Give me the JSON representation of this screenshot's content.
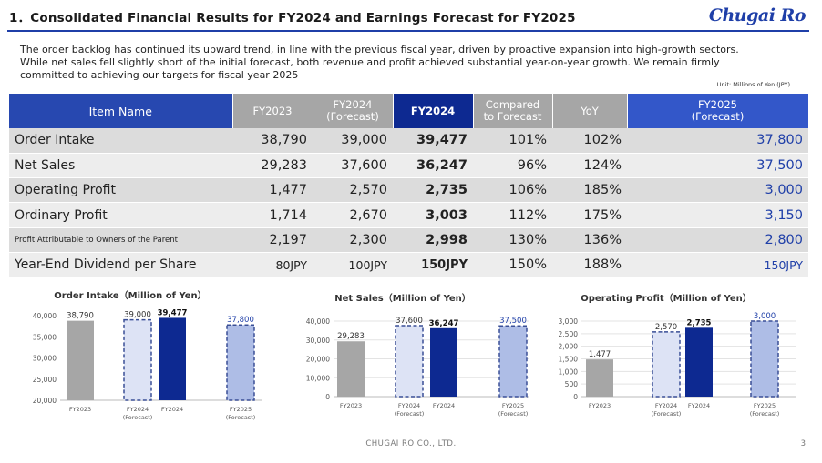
{
  "header": {
    "title": "1．Consolidated Financial Results for FY2024 and Earnings Forecast for FY2025",
    "logo": "Chugai Ro"
  },
  "intro": "The order backlog has continued its upward trend, in line with the previous fiscal year, driven by proactive expansion into high-growth sectors. While net sales fell slightly short of the initial forecast, both revenue and profit achieved substantial year-on-year growth. We remain firmly committed to achieving our targets for fiscal year 2025",
  "unit": "Unit: Millions of Yen (JPY)",
  "table": {
    "headers": {
      "item": "Item Name",
      "fy2023": "FY2023",
      "fy2024f_1": "FY2024",
      "fy2024f_2": "(Forecast)",
      "fy2024": "FY2024",
      "cmp_1": "Compared",
      "cmp_2": "to Forecast",
      "yoy": "YoY",
      "fy2025_1": "FY2025",
      "fy2025_2": "(Forecast)"
    },
    "rows": [
      {
        "name": "Order Intake",
        "fy2023": "38,790",
        "fy2024f": "39,000",
        "fy2024": "39,477",
        "cmp": "101%",
        "yoy": "102%",
        "fy2025": "37,800"
      },
      {
        "name": "Net Sales",
        "fy2023": "29,283",
        "fy2024f": "37,600",
        "fy2024": "36,247",
        "cmp": "96%",
        "yoy": "124%",
        "fy2025": "37,500"
      },
      {
        "name": "Operating Profit",
        "fy2023": "1,477",
        "fy2024f": "2,570",
        "fy2024": "2,735",
        "cmp": "106%",
        "yoy": "185%",
        "fy2025": "3,000"
      },
      {
        "name": "Ordinary Profit",
        "fy2023": "1,714",
        "fy2024f": "2,670",
        "fy2024": "3,003",
        "cmp": "112%",
        "yoy": "175%",
        "fy2025": "3,150"
      },
      {
        "name": "Profit Attributable to Owners of the Parent",
        "fy2023": "2,197",
        "fy2024f": "2,300",
        "fy2024": "2,998",
        "cmp": "130%",
        "yoy": "136%",
        "fy2025": "2,800"
      },
      {
        "name": "Year-End Dividend per Share",
        "fy2023": "80JPY",
        "fy2024f": "100JPY",
        "fy2024": "150JPY",
        "cmp": "150%",
        "yoy": "188%",
        "fy2025": "150JPY"
      }
    ]
  },
  "colors": {
    "fy2023": "#a6a6a6",
    "fy2024_forecast": "#dde3f5",
    "fy2024": "#0d2991",
    "fy2025_forecast": "#aebde6",
    "dash": "#3a4f96",
    "accent": "#1f3fa8"
  },
  "chart_data": [
    {
      "type": "bar",
      "title": "Order Intake（Million of Yen）",
      "categories": [
        "FY2023",
        "FY2024 (Forecast)",
        "FY2024",
        "FY2025 (Forecast)"
      ],
      "values": [
        38790,
        39000,
        39477,
        37800
      ],
      "value_labels": [
        "38,790",
        "39,000",
        "39,477",
        "37,800"
      ],
      "ylim": [
        20000,
        40000
      ],
      "yticks": [
        "20,000",
        "25,000",
        "30,000",
        "35,000",
        "40,000"
      ],
      "ytick_values": [
        20000,
        25000,
        30000,
        35000,
        40000
      ],
      "grid": false
    },
    {
      "type": "bar",
      "title": "Net Sales（Million of Yen）",
      "categories": [
        "FY2023",
        "FY2024 (Forecast)",
        "FY2024",
        "FY2025 (Forecast)"
      ],
      "values": [
        29283,
        37600,
        36247,
        37500
      ],
      "value_labels": [
        "29,283",
        "37,600",
        "36,247",
        "37,500"
      ],
      "ylim": [
        0,
        40000
      ],
      "yticks": [
        "0",
        "10,000",
        "20,000",
        "30,000",
        "40,000"
      ],
      "ytick_values": [
        0,
        10000,
        20000,
        30000,
        40000
      ],
      "grid": true
    },
    {
      "type": "bar",
      "title": "Operating Profit（Million of Yen）",
      "categories": [
        "FY2023",
        "FY2024 (Forecast)",
        "FY2024",
        "FY2025 (Forecast)"
      ],
      "values": [
        1477,
        2570,
        2735,
        3000
      ],
      "value_labels": [
        "1,477",
        "2,570",
        "2,735",
        "3,000"
      ],
      "ylim": [
        0,
        3000
      ],
      "yticks": [
        "0",
        "500",
        "1,000",
        "1,500",
        "2,000",
        "2,500",
        "3,000"
      ],
      "ytick_values": [
        0,
        500,
        1000,
        1500,
        2000,
        2500,
        3000
      ],
      "grid": true
    }
  ],
  "footer": {
    "company": "CHUGAI RO CO., LTD.",
    "page": "3"
  }
}
